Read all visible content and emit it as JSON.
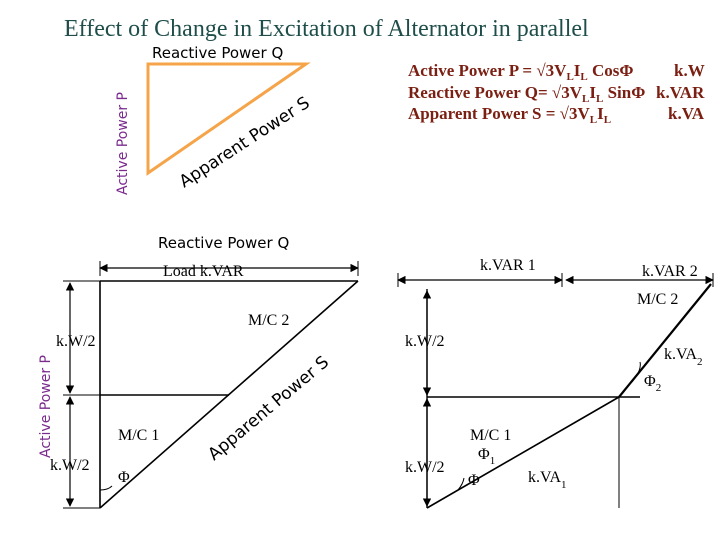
{
  "title": "Effect of Change in Excitation of Alternator in parallel",
  "top_triangle": {
    "reactive_label": "Reactive Power Q",
    "active_label": "Active  Power P",
    "apparent_label": "Apparent Power S",
    "edge_color": "#f5a44a"
  },
  "formulas": {
    "active": {
      "prefix": "Active  Power P = √3V",
      "sub1": "L",
      "mid": "I",
      "sub2": "L",
      "suffix": " CosΦ",
      "unit": "k.W"
    },
    "reactive": {
      "prefix": "Reactive Power Q= √3V",
      "sub1": "L",
      "mid": "I",
      "sub2": "L",
      "suffix": " SinΦ",
      "unit": "k.VAR"
    },
    "apparent": {
      "prefix": "Apparent Power S = √3V",
      "sub1": "L",
      "mid": "I",
      "sub2": "L",
      "suffix": "",
      "unit": "k.VA"
    }
  },
  "left_diagram": {
    "reactive_label": "Reactive Power Q",
    "active_label": "Active  Power P",
    "apparent_label": "Apparent Power S",
    "load_kvar": "Load k.VAR",
    "kw_upper": "k.W/2",
    "kw_lower": "k.W/2",
    "mc2": "M/C 2",
    "mc1": "M/C 1",
    "phi": "Φ"
  },
  "right_diagram": {
    "kvar1": "k.VAR 1",
    "kvar2": "k.VAR 2",
    "mc2": "M/C 2",
    "mc1": "M/C 1",
    "kw_upper": "k.W/2",
    "kw_lower": "k.W/2",
    "kva2": {
      "main": "k.VA",
      "sub": "2"
    },
    "phi2": {
      "main": "Φ",
      "sub": "2"
    },
    "phi1": {
      "main": "Φ",
      "sub": "1"
    },
    "phi": "Φ",
    "kva1": {
      "main": "k.VA",
      "sub": "1"
    }
  },
  "colors": {
    "title": "#1f4e4a",
    "formula": "#7a1f12",
    "active_axis_label": "#7b2a8e",
    "triangle": "#f5a44a"
  }
}
